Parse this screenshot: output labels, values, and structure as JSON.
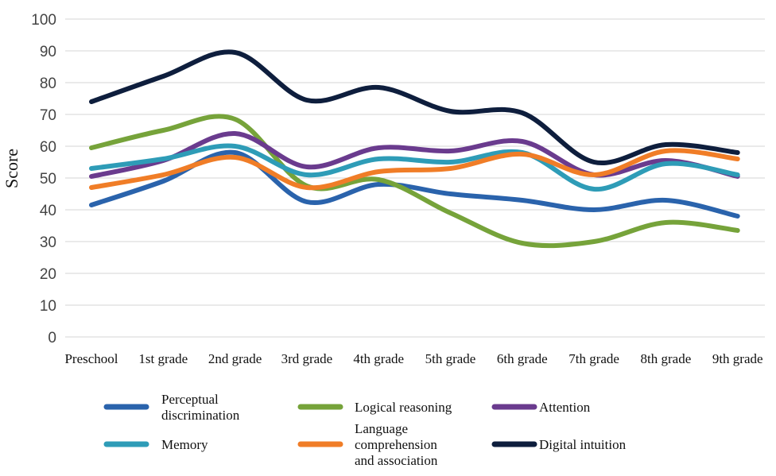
{
  "chart_data": {
    "type": "line",
    "title": "",
    "xlabel": "",
    "ylabel": "Score",
    "ylim": [
      0,
      100
    ],
    "yticks": [
      0,
      10,
      20,
      30,
      40,
      50,
      60,
      70,
      80,
      90,
      100
    ],
    "grid": "horizontal",
    "legend_position": "bottom",
    "categories": [
      "Preschool",
      "1st grade",
      "2nd grade",
      "3rd grade",
      "4th grade",
      "5th grade",
      "6th grade",
      "7th grade",
      "8th grade",
      "9th grade"
    ],
    "series": [
      {
        "name": "Perceptual discrimination",
        "legend_lines": [
          "Perceptual",
          "discrimination"
        ],
        "color": "#2A63AC",
        "values": [
          41.5,
          49,
          58,
          42.5,
          48,
          45,
          43,
          40,
          43,
          38
        ]
      },
      {
        "name": "Logical reasoning",
        "legend_lines": [
          "Logical reasoning"
        ],
        "color": "#76A33A",
        "values": [
          59.5,
          65,
          68.5,
          47.5,
          49.5,
          39,
          29.5,
          30,
          36,
          33.5
        ]
      },
      {
        "name": "Attention",
        "legend_lines": [
          "Attention"
        ],
        "color": "#6A3B8E",
        "values": [
          50.5,
          55.5,
          64,
          53.5,
          59.5,
          58.5,
          61.5,
          51,
          55.5,
          50.5
        ]
      },
      {
        "name": "Memory",
        "legend_lines": [
          "Memory"
        ],
        "color": "#2E9CB7",
        "values": [
          53,
          56,
          60,
          51,
          56,
          55,
          58,
          46.5,
          54.5,
          51
        ]
      },
      {
        "name": "Language comprehension and association",
        "legend_lines": [
          "Language",
          "comprehension",
          "and association"
        ],
        "color": "#F07D27",
        "values": [
          47,
          51,
          56.5,
          47,
          52,
          53,
          57.5,
          51,
          58.5,
          56
        ]
      },
      {
        "name": "Digital intuition",
        "legend_lines": [
          "Digital intuition"
        ],
        "color": "#0E1E3D",
        "values": [
          74,
          82,
          89.5,
          74.5,
          78.5,
          71,
          70.5,
          55,
          60.5,
          58
        ]
      }
    ]
  }
}
